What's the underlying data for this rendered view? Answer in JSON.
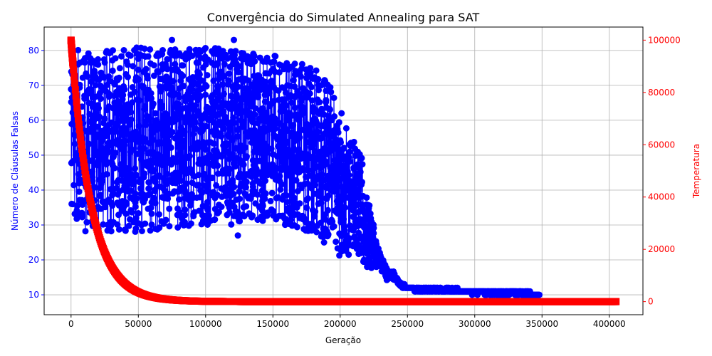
{
  "chart_data": {
    "type": "line",
    "title": "Convergência do Simulated Annealing para SAT",
    "xlabel": "Geração",
    "ylabel_left": "Número de Cláusulas Falsas",
    "ylabel_right": "Temperatura",
    "xlim": [
      -20000,
      425000
    ],
    "ylim_left": [
      4.3,
      86.7
    ],
    "ylim_right": [
      -5000,
      105000
    ],
    "x_ticks": [
      0,
      50000,
      100000,
      150000,
      200000,
      250000,
      300000,
      350000,
      400000
    ],
    "x_tick_labels": [
      "0",
      "50000",
      "100000",
      "150000",
      "200000",
      "250000",
      "300000",
      "350000",
      "400000"
    ],
    "y_left_ticks": [
      10,
      20,
      30,
      40,
      50,
      60,
      70,
      80
    ],
    "y_left_tick_labels": [
      "10",
      "20",
      "30",
      "40",
      "50",
      "60",
      "70",
      "80"
    ],
    "y_right_ticks": [
      0,
      20000,
      40000,
      60000,
      80000,
      100000
    ],
    "y_right_tick_labels": [
      "0",
      "20000",
      "40000",
      "60000",
      "80000",
      "100000"
    ],
    "grid": true,
    "colors": {
      "false_clauses": "#0000ff",
      "temperature": "#ff0000",
      "grid": "#b0b0b0",
      "axes": "#000000"
    },
    "false_clauses_envelope": [
      {
        "x": 0,
        "min": 33,
        "max": 83
      },
      {
        "x": 10000,
        "min": 28,
        "max": 79
      },
      {
        "x": 50000,
        "min": 28,
        "max": 81
      },
      {
        "x": 100000,
        "min": 30,
        "max": 81
      },
      {
        "x": 150000,
        "min": 30,
        "max": 79
      },
      {
        "x": 180000,
        "min": 28,
        "max": 75
      },
      {
        "x": 190000,
        "min": 25,
        "max": 73
      },
      {
        "x": 200000,
        "min": 20,
        "max": 62
      },
      {
        "x": 210000,
        "min": 22,
        "max": 54
      },
      {
        "x": 215000,
        "min": 20,
        "max": 52
      },
      {
        "x": 220000,
        "min": 16,
        "max": 40
      },
      {
        "x": 225000,
        "min": 16,
        "max": 30
      },
      {
        "x": 230000,
        "min": 16,
        "max": 23
      },
      {
        "x": 235000,
        "min": 14,
        "max": 18
      },
      {
        "x": 240000,
        "min": 14,
        "max": 16
      },
      {
        "x": 245000,
        "min": 12,
        "max": 14
      },
      {
        "x": 250000,
        "min": 12,
        "max": 12
      },
      {
        "x": 258000,
        "min": 11,
        "max": 12
      },
      {
        "x": 335000,
        "min": 10,
        "max": 11
      },
      {
        "x": 348000,
        "min": 10,
        "max": 10
      }
    ],
    "false_clauses_outliers": [
      {
        "x": 75000,
        "y": 83
      },
      {
        "x": 121000,
        "y": 83
      },
      {
        "x": 124000,
        "y": 27
      },
      {
        "x": 201000,
        "y": 62
      },
      {
        "x": 188000,
        "y": 25
      }
    ],
    "temperature": {
      "x_start": 0,
      "x_end": 405000,
      "t0": 100000,
      "decay_scale": 15000,
      "floor": 0,
      "sample_points": [
        {
          "x": 0,
          "y": 100000
        },
        {
          "x": 5000,
          "y": 80000
        },
        {
          "x": 10000,
          "y": 60000
        },
        {
          "x": 20000,
          "y": 37000
        },
        {
          "x": 50000,
          "y": 9000
        },
        {
          "x": 100000,
          "y": 1500
        },
        {
          "x": 150000,
          "y": 300
        },
        {
          "x": 405000,
          "y": 0
        }
      ]
    }
  }
}
